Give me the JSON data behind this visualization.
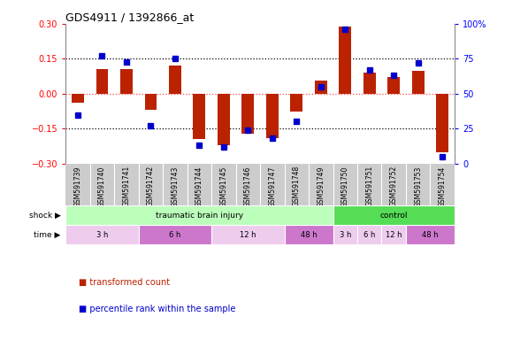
{
  "title": "GDS4911 / 1392866_at",
  "samples": [
    "GSM591739",
    "GSM591740",
    "GSM591741",
    "GSM591742",
    "GSM591743",
    "GSM591744",
    "GSM591745",
    "GSM591746",
    "GSM591747",
    "GSM591748",
    "GSM591749",
    "GSM591750",
    "GSM591751",
    "GSM591752",
    "GSM591753",
    "GSM591754"
  ],
  "red_bars": [
    -0.04,
    0.105,
    0.105,
    -0.07,
    0.12,
    -0.195,
    -0.22,
    -0.17,
    -0.19,
    -0.075,
    0.055,
    0.29,
    0.09,
    0.07,
    0.1,
    -0.25
  ],
  "blue_dots": [
    35,
    77,
    73,
    27,
    75,
    13,
    12,
    24,
    18,
    30,
    55,
    96,
    67,
    63,
    72,
    5
  ],
  "ylim_left": [
    -0.3,
    0.3
  ],
  "ylim_right": [
    0,
    100
  ],
  "yticks_left": [
    -0.3,
    -0.15,
    0.0,
    0.15,
    0.3
  ],
  "yticks_right": [
    0,
    25,
    50,
    75,
    100
  ],
  "dotted_lines": [
    -0.15,
    0.0,
    0.15
  ],
  "shock_groups": [
    {
      "label": "traumatic brain injury",
      "start": 0,
      "end": 11,
      "color": "#bbffbb"
    },
    {
      "label": "control",
      "start": 11,
      "end": 16,
      "color": "#55dd55"
    }
  ],
  "time_groups": [
    {
      "label": "3 h",
      "start": 0,
      "end": 3,
      "color": "#eeccee"
    },
    {
      "label": "6 h",
      "start": 3,
      "end": 6,
      "color": "#cc77cc"
    },
    {
      "label": "12 h",
      "start": 6,
      "end": 9,
      "color": "#eeccee"
    },
    {
      "label": "48 h",
      "start": 9,
      "end": 11,
      "color": "#cc77cc"
    },
    {
      "label": "3 h",
      "start": 11,
      "end": 12,
      "color": "#eeccee"
    },
    {
      "label": "6 h",
      "start": 12,
      "end": 13,
      "color": "#eeccee"
    },
    {
      "label": "12 h",
      "start": 13,
      "end": 14,
      "color": "#eeccee"
    },
    {
      "label": "48 h",
      "start": 14,
      "end": 16,
      "color": "#cc77cc"
    }
  ],
  "bar_color": "#bb2200",
  "dot_color": "#0000cc",
  "sample_bg": "#cccccc",
  "plot_bg": "#ffffff",
  "fig_bg": "#ffffff"
}
